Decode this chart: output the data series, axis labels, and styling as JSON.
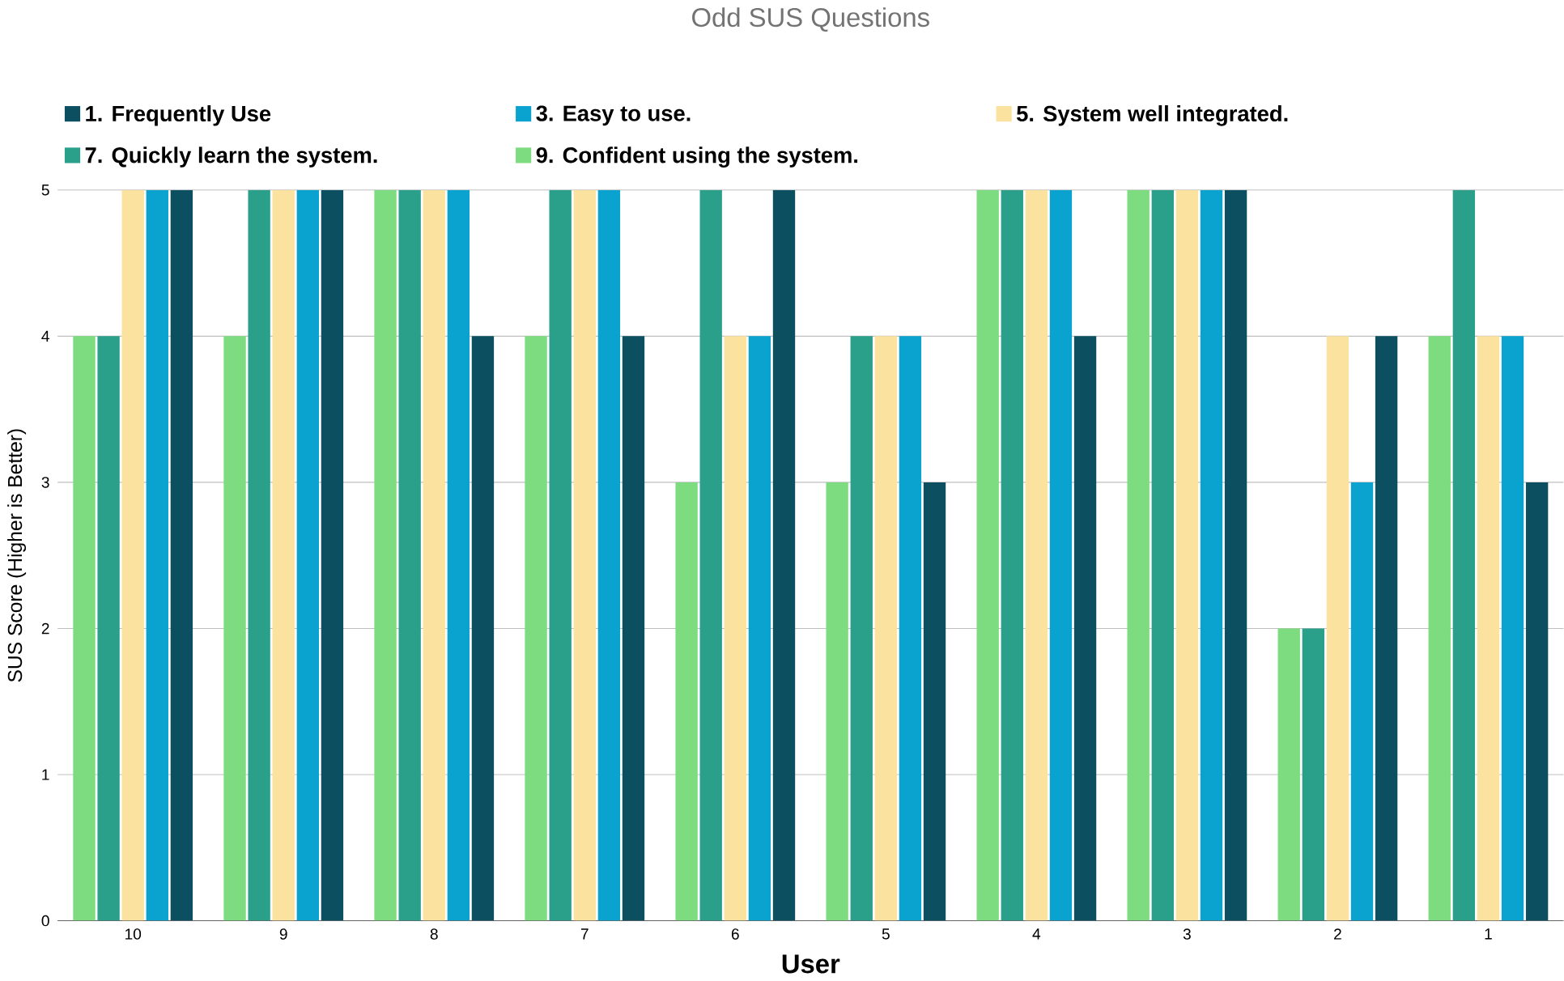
{
  "chart_data": {
    "type": "bar",
    "title": "Odd SUS Questions",
    "xlabel": "User",
    "ylabel": "SUS Score (Higher is Better)",
    "categories": [
      "10",
      "9",
      "8",
      "7",
      "6",
      "5",
      "4",
      "3",
      "2",
      "1"
    ],
    "series": [
      {
        "name": "1. Frequently Use",
        "color": "#0b4f60",
        "values": [
          5,
          5,
          4,
          4,
          5,
          3,
          4,
          5,
          4,
          3
        ]
      },
      {
        "name": "3. Easy to use.",
        "color": "#0aa3d0",
        "values": [
          5,
          5,
          5,
          5,
          4,
          4,
          5,
          5,
          3,
          4
        ]
      },
      {
        "name": "5. System well integrated.",
        "color": "#fbe29f",
        "values": [
          5,
          5,
          5,
          5,
          4,
          4,
          5,
          5,
          4,
          4
        ]
      },
      {
        "name": "7. Quickly learn the system.",
        "color": "#2a9f8a",
        "values": [
          4,
          5,
          5,
          5,
          5,
          4,
          5,
          5,
          2,
          5
        ]
      },
      {
        "name": "9. Confident using the system.",
        "color": "#7ddc7f",
        "values": [
          4,
          4,
          5,
          4,
          3,
          3,
          5,
          5,
          2,
          4
        ]
      }
    ],
    "ylim": [
      0,
      5
    ],
    "yticks": [
      0,
      1,
      2,
      3,
      4,
      5
    ],
    "grid": "y",
    "legend": "top"
  }
}
